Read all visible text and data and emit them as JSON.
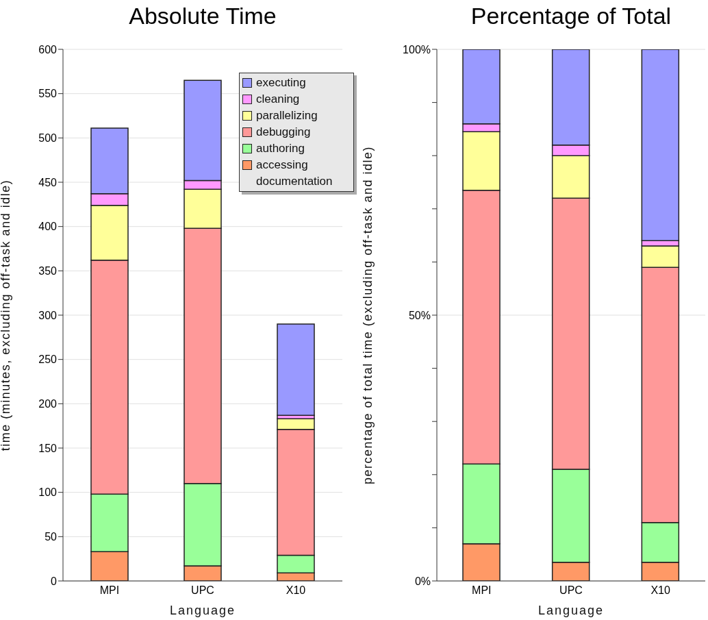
{
  "chart_data": [
    {
      "type": "bar",
      "title": "Absolute Time",
      "xlabel": "Language",
      "ylabel": "time (minutes, excluding off-task and idle)",
      "categories": [
        "MPI",
        "UPC",
        "X10"
      ],
      "stacked": true,
      "series": [
        {
          "name": "accessing documentation",
          "color": "#ff9966",
          "values": [
            33,
            17,
            9
          ]
        },
        {
          "name": "authoring",
          "color": "#99ff99",
          "values": [
            65,
            93,
            20
          ]
        },
        {
          "name": "debugging",
          "color": "#ff9999",
          "values": [
            264,
            288,
            142
          ]
        },
        {
          "name": "parallelizing",
          "color": "#ffff99",
          "values": [
            62,
            44,
            12
          ]
        },
        {
          "name": "cleaning",
          "color": "#ff99ff",
          "values": [
            13,
            10,
            4
          ]
        },
        {
          "name": "executing",
          "color": "#9999ff",
          "values": [
            74,
            113,
            103
          ]
        }
      ],
      "ylim": [
        0,
        600
      ],
      "yticks": [
        0,
        50,
        100,
        150,
        200,
        250,
        300,
        350,
        400,
        450,
        500,
        550,
        600
      ],
      "grid": "y",
      "legend": "top right"
    },
    {
      "type": "bar",
      "title": "Percentage of Total",
      "xlabel": "Language",
      "ylabel": "percentage of total time (excluding off-task and idle)",
      "categories": [
        "MPI",
        "UPC",
        "X10"
      ],
      "stacked": true,
      "series": [
        {
          "color": "#ff9966",
          "values": [
            7,
            3.5,
            3.5
          ]
        },
        {
          "color": "#99ff99",
          "values": [
            15,
            17.5,
            7.5
          ]
        },
        {
          "color": "#ff9999",
          "values": [
            51.5,
            51,
            48
          ]
        },
        {
          "color": "#ffff99",
          "values": [
            11,
            8,
            4
          ]
        },
        {
          "color": "#ff99ff",
          "values": [
            1.5,
            2,
            1
          ]
        },
        {
          "color": "#9999ff",
          "values": [
            14,
            18,
            36
          ]
        }
      ],
      "ylim": [
        0,
        100
      ],
      "yticks": [
        {
          "value": 0,
          "label": "0%"
        },
        {
          "value": 10,
          "label": null
        },
        {
          "value": 20,
          "label": null
        },
        {
          "value": 30,
          "label": null
        },
        {
          "value": 40,
          "label": null
        },
        {
          "value": 50,
          "label": "50%"
        },
        {
          "value": 60,
          "label": null
        },
        {
          "value": 70,
          "label": null
        },
        {
          "value": 80,
          "label": null
        },
        {
          "value": 90,
          "label": null
        },
        {
          "value": 100,
          "label": "100%"
        }
      ],
      "grid": "y"
    }
  ]
}
